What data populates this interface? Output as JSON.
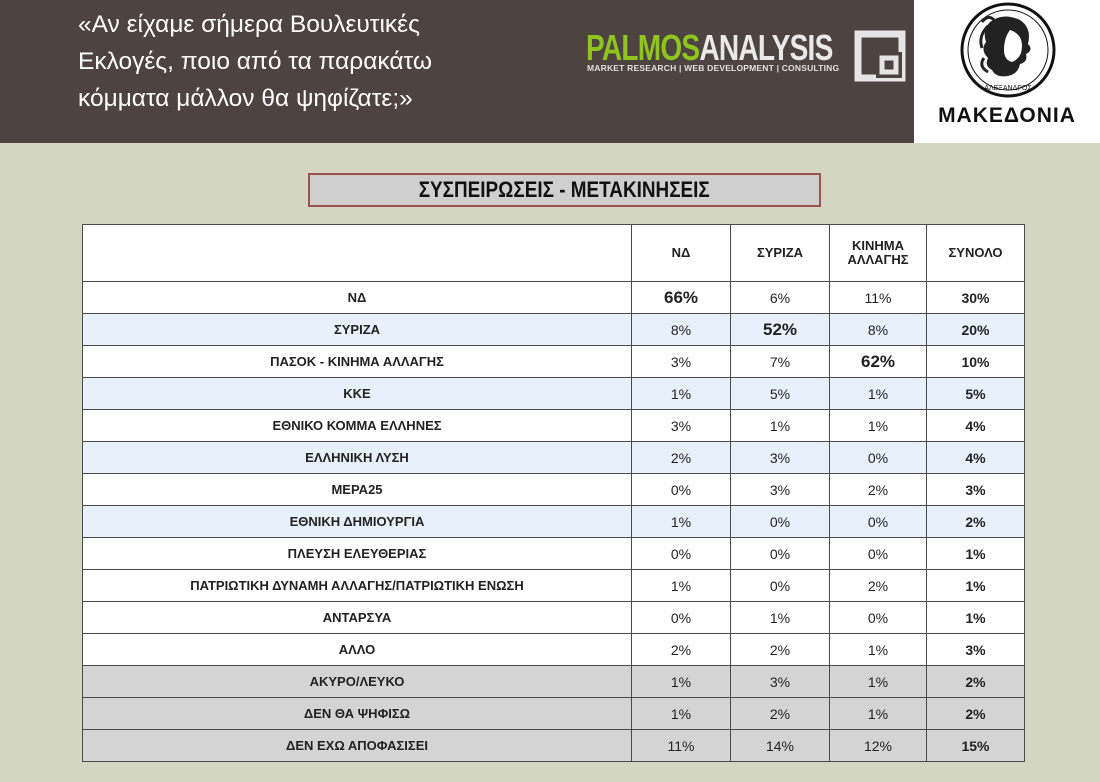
{
  "header": {
    "question_lines": [
      "«Αν είχαμε σήμερα Βουλευτικές",
      "Εκλογές, ποιο από τα παρακάτω",
      "κόμματα μάλλον θα ψηφίζατε;»"
    ],
    "palmos": {
      "word_part1": "PALMOS",
      "word_part2": "ANALYSIS",
      "tagline": "MARKET RESEARCH | WEB DEVELOPMENT | CONSULTING",
      "color_green": "#8fc31f"
    },
    "makedonia": {
      "name": "ΜΑΚΕΔΟΝΙΑ",
      "coin_text": "ΑΛΕΞΑΝΔΡΟΣ"
    }
  },
  "title": "ΣΥΣΠΕΙΡΩΣΕΙΣ - ΜΕΤΑΚΙΝΗΣΕΙΣ",
  "table": {
    "columns": [
      "ΝΔ",
      "ΣΥΡΙΖΑ",
      "ΚΙΝΗΜΑ ΑΛΛΑΓΗΣ",
      "ΣΥΝΟΛΟ"
    ],
    "column_lines": [
      [
        "ΝΔ"
      ],
      [
        "ΣΥΡΙΖΑ"
      ],
      [
        "ΚΙΝΗΜΑ",
        "ΑΛΛΑΓΗΣ"
      ],
      [
        "ΣΥΝΟΛΟ"
      ]
    ],
    "rows": [
      {
        "party": "ΝΔ",
        "nd": "66%",
        "syriza": "6%",
        "kinal": "11%",
        "total": "30%",
        "highlight": "nd"
      },
      {
        "party": "ΣΥΡΙΖΑ",
        "nd": "8%",
        "syriza": "52%",
        "kinal": "8%",
        "total": "20%",
        "highlight": "syriza"
      },
      {
        "party": "ΠΑΣΟΚ - ΚΙΝΗΜΑ ΑΛΛΑΓΗΣ",
        "nd": "3%",
        "syriza": "7%",
        "kinal": "62%",
        "total": "10%",
        "highlight": "kinal"
      },
      {
        "party": "ΚΚΕ",
        "nd": "1%",
        "syriza": "5%",
        "kinal": "1%",
        "total": "5%"
      },
      {
        "party": "ΕΘΝΙΚΟ ΚΟΜΜΑ ΕΛΛΗΝΕΣ",
        "nd": "3%",
        "syriza": "1%",
        "kinal": "1%",
        "total": "4%"
      },
      {
        "party": "ΕΛΛΗΝΙΚΗ ΛΥΣΗ",
        "nd": "2%",
        "syriza": "3%",
        "kinal": "0%",
        "total": "4%"
      },
      {
        "party": "ΜΕΡΑ25",
        "nd": "0%",
        "syriza": "3%",
        "kinal": "2%",
        "total": "3%"
      },
      {
        "party": "ΕΘΝΙΚΗ ΔΗΜΙΟΥΡΓΙΑ",
        "nd": "1%",
        "syriza": "0%",
        "kinal": "0%",
        "total": "2%"
      },
      {
        "party": "ΠΛΕΥΣΗ ΕΛΕΥΘΕΡΙΑΣ",
        "nd": "0%",
        "syriza": "0%",
        "kinal": "0%",
        "total": "1%"
      },
      {
        "party": "ΠΑΤΡΙΩΤΙΚΗ ΔΥΝΑΜΗ ΑΛΛΑΓΗΣ/ΠΑΤΡΙΩΤΙΚΗ ΕΝΩΣΗ",
        "nd": "1%",
        "syriza": "0%",
        "kinal": "2%",
        "total": "1%"
      },
      {
        "party": "ΑΝΤΑΡΣΥΑ",
        "nd": "0%",
        "syriza": "1%",
        "kinal": "0%",
        "total": "1%"
      },
      {
        "party": "ΑΛΛΟ",
        "nd": "2%",
        "syriza": "2%",
        "kinal": "1%",
        "total": "3%"
      },
      {
        "party": "ΑΚΥΡΟ/ΛΕΥΚΟ",
        "nd": "1%",
        "syriza": "3%",
        "kinal": "1%",
        "total": "2%"
      },
      {
        "party": "ΔΕΝ ΘΑ ΨΗΦΙΣΩ",
        "nd": "1%",
        "syriza": "2%",
        "kinal": "1%",
        "total": "2%"
      },
      {
        "party": "ΔΕΝ ΕΧΩ ΑΠΟΦΑΣΙΣΕΙ",
        "nd": "11%",
        "syriza": "14%",
        "kinal": "12%",
        "total": "15%"
      }
    ],
    "row_styles": [
      "white",
      "blue",
      "white",
      "blue",
      "white",
      "blue",
      "white",
      "blue",
      "white",
      "white",
      "white",
      "white",
      "gray",
      "gray",
      "gray"
    ]
  }
}
